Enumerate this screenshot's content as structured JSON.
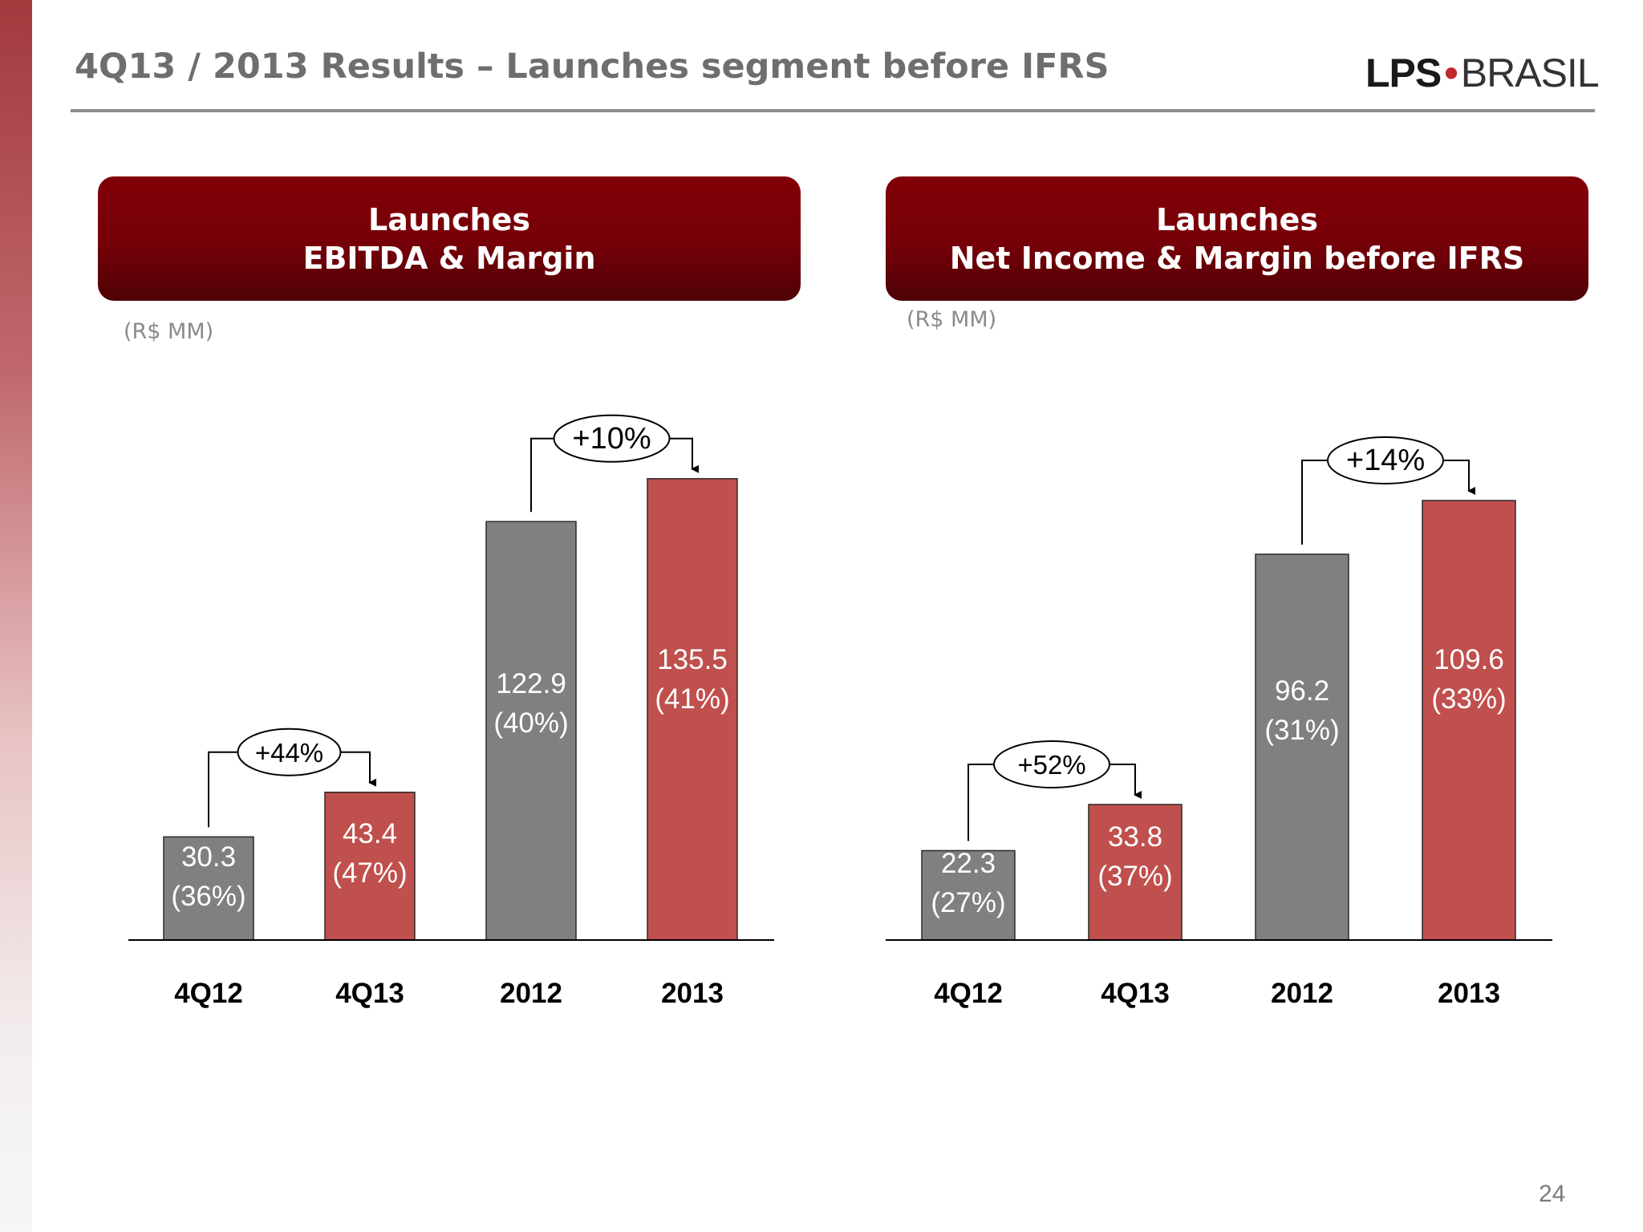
{
  "slide": {
    "title": "4Q13 / 2013 Results – Launches segment before IFRS",
    "page_number": "24",
    "logo": {
      "part1": "LPS",
      "separator": "•",
      "part2": "BRASIL"
    }
  },
  "colors": {
    "previous_period": "#808080",
    "current_period": "#c0504d",
    "header": "#7a0008"
  },
  "chart_data": [
    {
      "type": "bar",
      "title_line1": "Launches",
      "title_line2": "EBITDA & Margin",
      "unit": "(R$ MM)",
      "categories": [
        "4Q12",
        "4Q13",
        "2012",
        "2013"
      ],
      "values": [
        30.3,
        43.4,
        122.9,
        135.5
      ],
      "margins": [
        "(36%)",
        "(47%)",
        "(40%)",
        "(41%)"
      ],
      "value_labels": [
        "30.3",
        "43.4",
        "122.9",
        "135.5"
      ],
      "bar_colors": [
        "#808080",
        "#c0504d",
        "#808080",
        "#c0504d"
      ],
      "growth": [
        {
          "from": 0,
          "to": 1,
          "label": "+44%"
        },
        {
          "from": 2,
          "to": 3,
          "label": "+10%"
        }
      ]
    },
    {
      "type": "bar",
      "title_line1": "Launches",
      "title_line2": "Net Income & Margin before IFRS",
      "unit": "(R$ MM)",
      "categories": [
        "4Q12",
        "4Q13",
        "2012",
        "2013"
      ],
      "values": [
        22.3,
        33.8,
        96.2,
        109.6
      ],
      "margins": [
        "(27%)",
        "(37%)",
        "(31%)",
        "(33%)"
      ],
      "value_labels": [
        "22.3",
        "33.8",
        "96.2",
        "109.6"
      ],
      "bar_colors": [
        "#808080",
        "#c0504d",
        "#808080",
        "#c0504d"
      ],
      "growth": [
        {
          "from": 0,
          "to": 1,
          "label": "+52%"
        },
        {
          "from": 2,
          "to": 3,
          "label": "+14%"
        }
      ]
    }
  ]
}
